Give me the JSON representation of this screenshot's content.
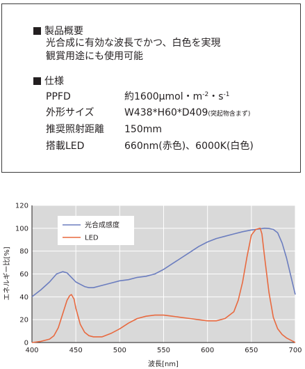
{
  "spec": {
    "overview_heading": "製品概要",
    "overview_lines": [
      "光合成に有効な波長でかつ、白色を実現",
      "観賞用途にも使用可能"
    ],
    "spec_heading": "仕様",
    "rows": [
      {
        "key": "PPFD",
        "value": "約1600μmol・m",
        "exp1": "-2",
        "mid": "・s",
        "exp2": "-1"
      },
      {
        "key": "外形サイズ",
        "value": "W438*H60*D409",
        "note": "(突起物含まず)"
      },
      {
        "key": "推奨照射距離",
        "value": "150mm"
      },
      {
        "key": "搭載LED",
        "value": "660nm(赤色)、6000K(白色)"
      }
    ]
  },
  "chart_data": {
    "type": "line",
    "xlabel": "波長[nm]",
    "ylabel": "エネルギー比[%]",
    "xlim": [
      400,
      700
    ],
    "ylim": [
      0,
      120
    ],
    "xticks": [
      400,
      450,
      500,
      550,
      600,
      650,
      700
    ],
    "yticks": [
      0,
      20,
      40,
      60,
      80,
      100,
      120
    ],
    "grid": true,
    "legend_position": "top-left",
    "series": [
      {
        "name": "光合成感度",
        "color": "#6b7dbf",
        "x": [
          400,
          410,
          420,
          428,
          435,
          440,
          445,
          450,
          455,
          460,
          465,
          470,
          480,
          490,
          500,
          510,
          520,
          530,
          540,
          550,
          560,
          570,
          580,
          590,
          600,
          610,
          620,
          630,
          640,
          650,
          655,
          660,
          665,
          670,
          675,
          680,
          685,
          690,
          695,
          700
        ],
        "y": [
          40,
          46,
          53,
          60,
          62,
          61,
          57,
          53,
          51,
          49,
          48,
          48,
          50,
          52,
          54,
          55,
          57,
          58,
          60,
          64,
          69,
          74,
          79,
          84,
          88,
          91,
          93,
          95,
          97,
          98.5,
          99,
          99.5,
          100,
          99.8,
          99,
          96,
          87,
          74,
          58,
          42
        ]
      },
      {
        "name": "LED",
        "color": "#e8693f",
        "x": [
          400,
          410,
          420,
          425,
          430,
          435,
          440,
          443,
          445,
          448,
          450,
          455,
          460,
          465,
          470,
          475,
          480,
          490,
          500,
          510,
          520,
          530,
          540,
          550,
          560,
          570,
          580,
          590,
          600,
          610,
          620,
          630,
          635,
          640,
          645,
          650,
          655,
          660,
          662,
          665,
          670,
          675,
          680,
          685,
          690,
          695,
          700
        ],
        "y": [
          0,
          1,
          3,
          6,
          13,
          25,
          37,
          41,
          42,
          38,
          30,
          16,
          9,
          6,
          5,
          5,
          5,
          8,
          12,
          17,
          21,
          23,
          24,
          24,
          23,
          22,
          21,
          20,
          19,
          19,
          21,
          27,
          37,
          53,
          75,
          94,
          99,
          100,
          95,
          75,
          44,
          22,
          12,
          7,
          4,
          2,
          0
        ]
      }
    ]
  }
}
